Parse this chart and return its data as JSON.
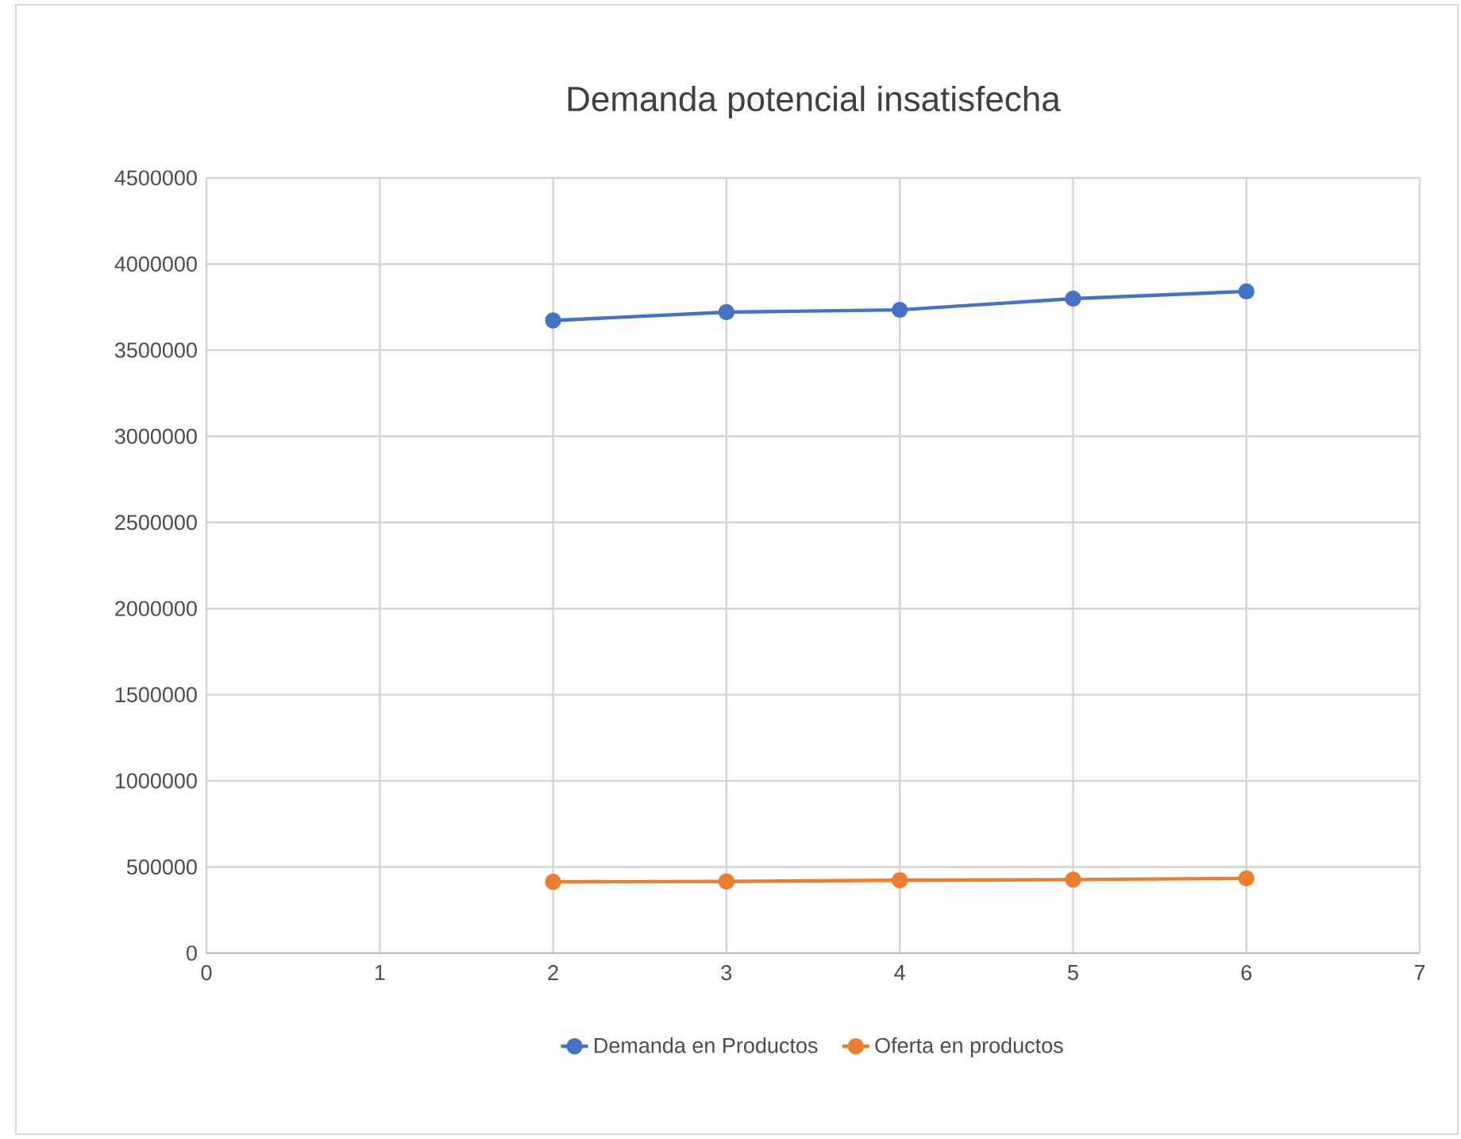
{
  "chart_data": {
    "type": "line",
    "title": "Demanda potencial insatisfecha",
    "x": [
      2,
      3,
      4,
      5,
      6
    ],
    "series": [
      {
        "name": "Demanda en Productos",
        "color": "#4472c4",
        "values": [
          3672000,
          3721000,
          3734000,
          3799000,
          3841000
        ]
      },
      {
        "name": "Oferta en productos",
        "color": "#ed7d31",
        "values": [
          414000,
          416000,
          423000,
          427000,
          434000
        ]
      }
    ],
    "xlim": [
      0,
      7
    ],
    "xticks": [
      0,
      1,
      2,
      3,
      4,
      5,
      6,
      7
    ],
    "ylim": [
      0,
      4500000
    ],
    "yticks": [
      0,
      500000,
      1000000,
      1500000,
      2000000,
      2500000,
      3000000,
      3500000,
      4000000,
      4500000
    ],
    "grid": true,
    "legend": "bottom",
    "marker": "circle",
    "line_style": "solid"
  }
}
